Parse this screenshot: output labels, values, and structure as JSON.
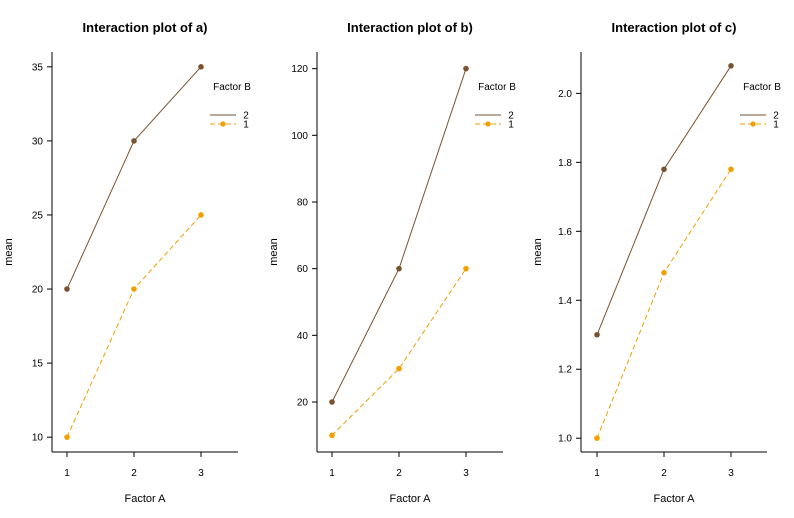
{
  "colors": {
    "series_2": "#7a5230",
    "series_1": "#f0a000",
    "axis": "#000000"
  },
  "chart_data": [
    {
      "type": "line",
      "title": "Interaction plot of a)",
      "xlabel": "Factor A",
      "ylabel": "mean",
      "x": [
        1,
        2,
        3
      ],
      "x_ticks": [
        "1",
        "2",
        "3"
      ],
      "ylim": [
        9,
        36
      ],
      "y_ticks": [
        10,
        15,
        20,
        25,
        30,
        35
      ],
      "legend_title": "Factor B",
      "legend_position": "top-right",
      "series": [
        {
          "name": "2",
          "values": [
            20,
            30,
            35
          ],
          "style": "solid"
        },
        {
          "name": "1",
          "values": [
            10,
            20,
            25
          ],
          "style": "dashed"
        }
      ]
    },
    {
      "type": "line",
      "title": "Interaction plot of b)",
      "xlabel": "Factor A",
      "ylabel": "mean",
      "x": [
        1,
        2,
        3
      ],
      "x_ticks": [
        "1",
        "2",
        "3"
      ],
      "ylim": [
        5,
        125
      ],
      "y_ticks": [
        20,
        40,
        60,
        80,
        100,
        120
      ],
      "legend_title": "Factor B",
      "legend_position": "top-right",
      "series": [
        {
          "name": "2",
          "values": [
            20,
            60,
            120
          ],
          "style": "solid"
        },
        {
          "name": "1",
          "values": [
            10,
            30,
            60
          ],
          "style": "dashed"
        }
      ]
    },
    {
      "type": "line",
      "title": "Interaction plot of c)",
      "xlabel": "Factor A",
      "ylabel": "mean",
      "x": [
        1,
        2,
        3
      ],
      "x_ticks": [
        "1",
        "2",
        "3"
      ],
      "ylim": [
        0.96,
        2.12
      ],
      "y_ticks": [
        "1.0",
        "1.2",
        "1.4",
        "1.6",
        "1.8",
        "2.0"
      ],
      "legend_title": "Factor B",
      "legend_position": "top-right",
      "series": [
        {
          "name": "2",
          "values": [
            1.3,
            1.78,
            2.08
          ],
          "style": "solid"
        },
        {
          "name": "1",
          "values": [
            1.0,
            1.48,
            1.78
          ],
          "style": "dashed"
        }
      ]
    }
  ]
}
